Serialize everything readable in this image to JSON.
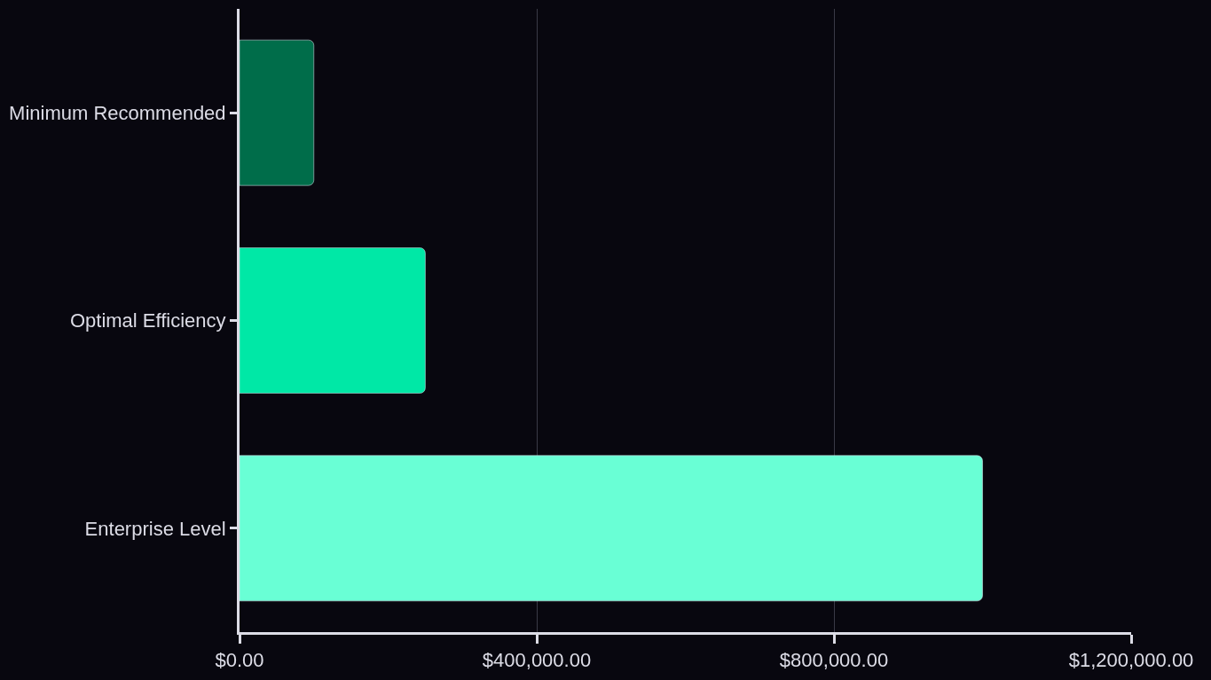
{
  "chart_data": {
    "type": "bar",
    "orientation": "horizontal",
    "categories": [
      "Minimum Recommended",
      "Optimal Efficiency",
      "Enterprise Level"
    ],
    "values": [
      100000,
      250000,
      1000000
    ],
    "colors": [
      "#006d4a",
      "#00e8a6",
      "#69ffd5"
    ],
    "xlim": [
      0,
      1200000
    ],
    "xticks": [
      {
        "value": 0,
        "label": "$0.00"
      },
      {
        "value": 400000,
        "label": "$400,000.00"
      },
      {
        "value": 800000,
        "label": "$800,000.00"
      },
      {
        "value": 1200000,
        "label": "$1,200,000.00"
      }
    ],
    "grid": "x"
  }
}
